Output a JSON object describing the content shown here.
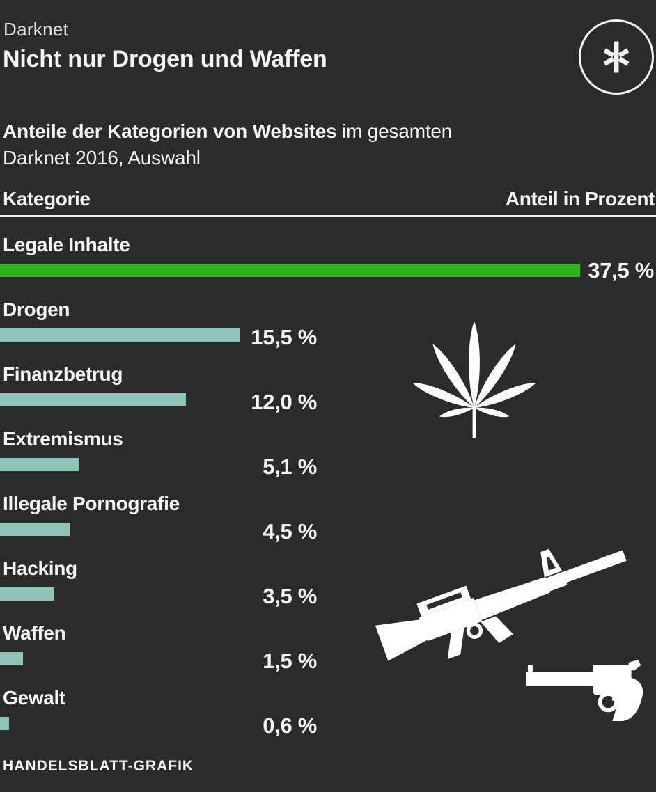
{
  "header": {
    "kicker": "Darknet",
    "title": "Nicht nur Drogen und Waffen",
    "logo_icon": "asterisk-icon"
  },
  "subtitle": {
    "bold_part": "Anteile der Kategorien von Websites",
    "regular_part": " im gesamten",
    "line2": "Darknet 2016, Auswahl"
  },
  "table": {
    "col_left": "Kategorie",
    "col_right": "Anteil in Prozent"
  },
  "chart_data": {
    "type": "bar",
    "orientation": "horizontal",
    "title": "Anteile der Kategorien von Websites im gesamten Darknet 2016, Auswahl",
    "categories": [
      "Legale Inhalte",
      "Drogen",
      "Finanzbetrug",
      "Extremismus",
      "Illegale Pornografie",
      "Hacking",
      "Waffen",
      "Gewalt"
    ],
    "values": [
      37.5,
      15.5,
      12.0,
      5.1,
      4.5,
      3.5,
      1.5,
      0.6
    ],
    "value_labels": [
      "37,5 %",
      "15,5 %",
      "12,0 %",
      "5,1 %",
      "4,5 %",
      "3,5 %",
      "1,5 %",
      "0,6 %"
    ],
    "unit": "percent",
    "xlim": [
      0,
      42
    ],
    "grid": false,
    "legend": false,
    "highlight_index": 0,
    "colors": {
      "highlight_bar": "#2eb41d",
      "bar": "#8fc4ba"
    }
  },
  "colors": {
    "background": "#2b2b2b",
    "accent_green": "#2eb41d",
    "bar_teal": "#8fc4ba",
    "text": "#f4f4f4",
    "divider": "#f0f0f0"
  },
  "icons": {
    "logo": "asterisk-icon",
    "drugs": "cannabis-leaf-icon",
    "weapon_rifle": "rifle-icon",
    "weapon_revolver": "revolver-icon"
  },
  "footer": {
    "credit": "HANDELSBLATT-GRAFIK"
  }
}
